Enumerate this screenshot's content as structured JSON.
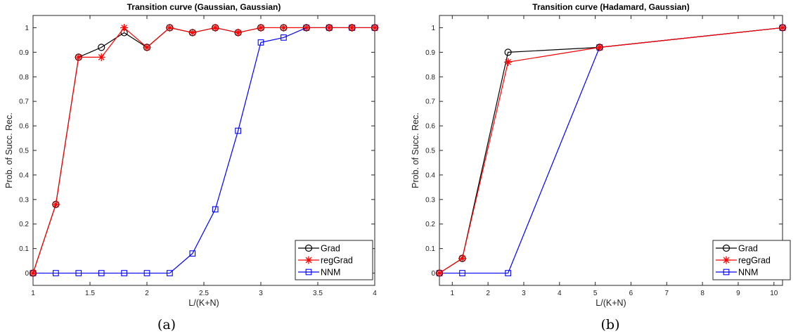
{
  "chart_data": [
    {
      "type": "line",
      "title": "Transition curve (Gaussian, Gaussian)",
      "xlabel": "L/(K+N)",
      "ylabel": "Prob. of Succ. Rec.",
      "caption": "(a)",
      "xlim": [
        1,
        4
      ],
      "ylim": [
        -0.05,
        1.05
      ],
      "xticks": [
        "1",
        "1.5",
        "2",
        "2.5",
        "3",
        "3.5",
        "4"
      ],
      "xtick_values": [
        1,
        1.5,
        2,
        2.5,
        3,
        3.5,
        4
      ],
      "yticks": [
        "0",
        "0.1",
        "0.2",
        "0.3",
        "0.4",
        "0.5",
        "0.6",
        "0.7",
        "0.8",
        "0.9",
        "1"
      ],
      "ytick_values": [
        0,
        0.1,
        0.2,
        0.3,
        0.4,
        0.5,
        0.6,
        0.7,
        0.8,
        0.9,
        1
      ],
      "legend": "bottom-right",
      "grid": false,
      "x": [
        1,
        1.2,
        1.4,
        1.6,
        1.8,
        2,
        2.2,
        2.4,
        2.6,
        2.8,
        3,
        3.2,
        3.4,
        3.6,
        3.8,
        4
      ],
      "series": [
        {
          "name": "Grad",
          "color": "#000000",
          "marker": "circle",
          "values": [
            0,
            0.28,
            0.88,
            0.92,
            0.98,
            0.92,
            1,
            0.98,
            1,
            0.98,
            1,
            1,
            1,
            1,
            1,
            1
          ]
        },
        {
          "name": "regGrad",
          "color": "#ff0000",
          "marker": "star",
          "values": [
            0,
            0.28,
            0.88,
            0.88,
            1,
            0.92,
            1,
            0.98,
            1,
            0.98,
            1,
            1,
            1,
            1,
            1,
            1
          ]
        },
        {
          "name": "NNM",
          "color": "#0000ff",
          "marker": "square",
          "values": [
            0,
            0,
            0,
            0,
            0,
            0,
            0,
            0.08,
            0.26,
            0.58,
            0.94,
            0.96,
            1,
            1,
            1,
            1
          ]
        }
      ]
    },
    {
      "type": "line",
      "title": "Transition curve (Hadamard, Gaussian)",
      "xlabel": "L/(K+N)",
      "ylabel": "Prob. of Succ. Rec.",
      "caption": "(b)",
      "xlim": [
        0.64,
        10.24
      ],
      "ylim": [
        -0.05,
        1.05
      ],
      "xticks": [
        "1",
        "2",
        "3",
        "4",
        "5",
        "6",
        "7",
        "8",
        "9",
        "10"
      ],
      "xtick_values": [
        1,
        2,
        3,
        4,
        5,
        6,
        7,
        8,
        9,
        10
      ],
      "yticks": [
        "0",
        "0.1",
        "0.2",
        "0.3",
        "0.4",
        "0.5",
        "0.6",
        "0.7",
        "0.8",
        "0.9",
        "1"
      ],
      "ytick_values": [
        0,
        0.1,
        0.2,
        0.3,
        0.4,
        0.5,
        0.6,
        0.7,
        0.8,
        0.9,
        1
      ],
      "legend": "bottom-right",
      "grid": false,
      "x": [
        0.64,
        1.28,
        2.56,
        5.12,
        10.24
      ],
      "series": [
        {
          "name": "Grad",
          "color": "#000000",
          "marker": "circle",
          "values": [
            0,
            0.06,
            0.9,
            0.92,
            1
          ]
        },
        {
          "name": "regGrad",
          "color": "#ff0000",
          "marker": "star",
          "values": [
            0,
            0.06,
            0.86,
            0.92,
            1
          ]
        },
        {
          "name": "NNM",
          "color": "#0000ff",
          "marker": "square",
          "values": [
            0,
            0,
            0,
            0.92,
            1
          ]
        }
      ]
    }
  ]
}
